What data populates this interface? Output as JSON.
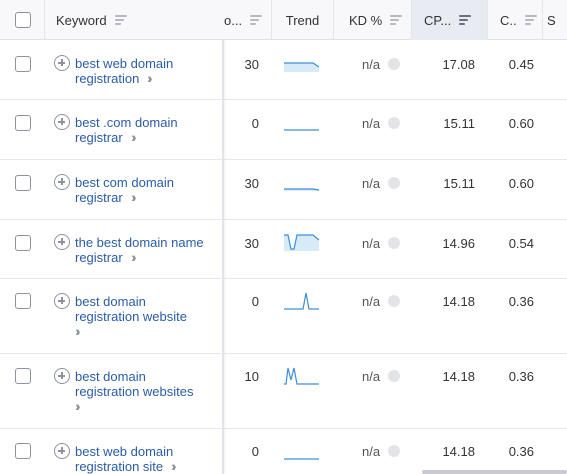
{
  "header": {
    "keyword": "Keyword",
    "volume": "o...",
    "trend": "Trend",
    "kd": "KD %",
    "cpc": "CP...",
    "com": "C..",
    "sr": "S"
  },
  "rows": [
    {
      "keyword": "best web domain registration",
      "volume": "30",
      "kd": "n/a",
      "cpc": "17.08",
      "com": "0.45"
    },
    {
      "keyword": "best .com domain registrar",
      "volume": "0",
      "kd": "n/a",
      "cpc": "15.11",
      "com": "0.60"
    },
    {
      "keyword": "best com domain registrar",
      "volume": "30",
      "kd": "n/a",
      "cpc": "15.11",
      "com": "0.60"
    },
    {
      "keyword": "the best domain name registrar",
      "volume": "30",
      "kd": "n/a",
      "cpc": "14.96",
      "com": "0.54"
    },
    {
      "keyword": "best domain registration website",
      "volume": "0",
      "kd": "n/a",
      "cpc": "14.18",
      "com": "0.36"
    },
    {
      "keyword": "best domain registration websites",
      "volume": "10",
      "kd": "n/a",
      "cpc": "14.18",
      "com": "0.36"
    },
    {
      "keyword": "best web domain registration site",
      "volume": "0",
      "kd": "n/a",
      "cpc": "14.18",
      "com": "0.36"
    }
  ],
  "colors": {
    "link": "#2a5ca8",
    "trend_line": "#3b8fd9",
    "trend_fill": "#d6eaf8",
    "header_bg": "#f8f8fa"
  },
  "icons": {
    "keyword_add": "plus-circle-icon",
    "expand": "double-chevron-right-icon",
    "sort": "sort-lines-icon"
  }
}
